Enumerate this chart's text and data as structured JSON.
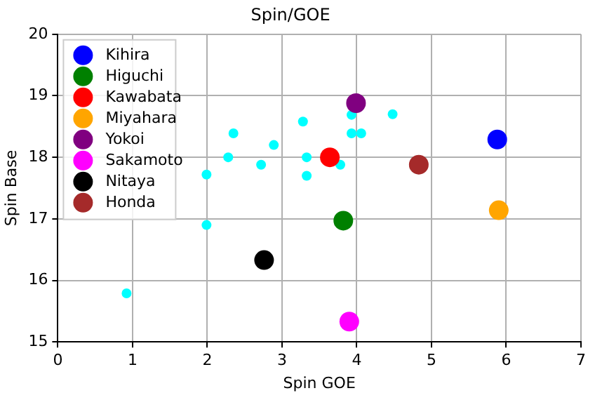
{
  "chart_data": {
    "type": "scatter",
    "title": "Spin/GOE",
    "xlabel": "Spin GOE",
    "ylabel": "Spin Base",
    "xlim": [
      0,
      7
    ],
    "xticks": [
      0,
      1,
      2,
      3,
      4,
      5,
      6,
      7
    ],
    "ylim": [
      15,
      20
    ],
    "yticks": [
      15,
      16,
      17,
      18,
      19,
      20
    ],
    "grid": true,
    "legend": "top left",
    "marker": "circle",
    "series": [
      {
        "color": "#00ffff",
        "x": [
          0.92,
          1.99,
          1.99,
          2.28,
          2.35,
          2.72,
          2.89,
          3.28,
          3.33,
          3.33,
          3.78,
          3.93,
          3.93,
          4.06,
          4.48
        ],
        "values": [
          15.79,
          16.9,
          17.72,
          18.0,
          18.39,
          17.88,
          18.2,
          18.58,
          18.0,
          17.7,
          17.88,
          18.69,
          18.39,
          18.39,
          18.7
        ]
      },
      {
        "name": "Kihira",
        "color": "#0000ff",
        "x": [
          5.88
        ],
        "values": [
          18.29
        ]
      },
      {
        "name": "Higuchi",
        "color": "#008000",
        "x": [
          3.82
        ],
        "values": [
          16.97
        ]
      },
      {
        "name": "Kawabata",
        "color": "#ff0000",
        "x": [
          3.64
        ],
        "values": [
          18.0
        ]
      },
      {
        "name": "Miyahara",
        "color": "#ffa500",
        "x": [
          5.9
        ],
        "values": [
          17.14
        ]
      },
      {
        "name": "Yokoi",
        "color": "#800080",
        "x": [
          3.99
        ],
        "values": [
          18.88
        ]
      },
      {
        "name": "Sakamoto",
        "color": "#ff00ff",
        "x": [
          3.9
        ],
        "values": [
          15.33
        ]
      },
      {
        "name": "Nitaya",
        "color": "#000000",
        "x": [
          2.76
        ],
        "values": [
          16.33
        ]
      },
      {
        "name": "Honda",
        "color": "#a52a2a",
        "x": [
          4.83
        ],
        "values": [
          17.88
        ]
      }
    ]
  }
}
